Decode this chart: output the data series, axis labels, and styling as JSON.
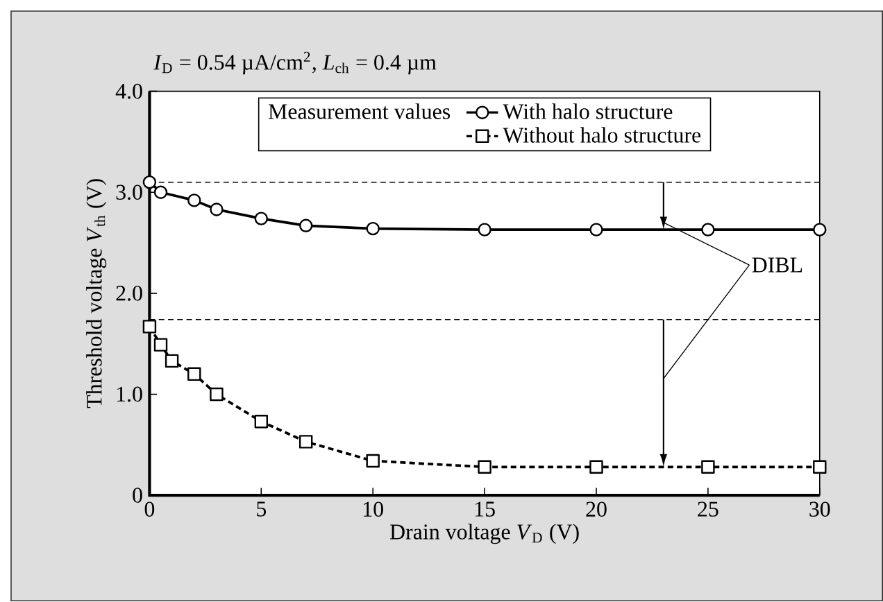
{
  "chart_data": {
    "type": "line",
    "title": "*I*$_{D}$ = 0.54 µA/cm$^{2}$, *L*$_{ch}$ = 0.4 µm",
    "xlabel": "Drain voltage *V*$_{D}$ (V)",
    "ylabel": "Threshold voltage *V*$_{th}$ (V)",
    "legend_title": "Measurement values",
    "xlim": [
      0,
      30
    ],
    "xticks": [
      0,
      5,
      10,
      15,
      20,
      25,
      30
    ],
    "ylim": [
      0,
      4
    ],
    "yticks": [
      0,
      {
        "value": 1,
        "label": "1.0"
      },
      {
        "value": 2,
        "label": "2.0"
      },
      {
        "value": 3,
        "label": "3.0"
      },
      {
        "value": 4,
        "label": "4.0"
      }
    ],
    "grid": false,
    "legend": "top",
    "series": [
      {
        "name": "With halo structure",
        "color": "#000000",
        "marker": "circle",
        "line_style": "solid",
        "x": [
          0,
          0.5,
          2,
          3,
          5,
          7,
          10,
          15,
          20,
          25,
          30
        ],
        "values": [
          3.1,
          3.0,
          2.92,
          2.83,
          2.74,
          2.67,
          2.64,
          2.63,
          2.63,
          2.63,
          2.63
        ]
      },
      {
        "name": "Without halo structure",
        "color": "#000000",
        "marker": "square",
        "line_style": "dashed",
        "x": [
          0,
          0.5,
          1,
          2,
          3,
          5,
          7,
          10,
          15,
          20,
          25,
          30
        ],
        "values": [
          1.67,
          1.49,
          1.33,
          1.2,
          1.0,
          0.73,
          0.53,
          0.34,
          0.28,
          0.28,
          0.28,
          0.28
        ]
      }
    ],
    "ref_lines": [
      {
        "axis": "y",
        "value": 3.1,
        "line_style": "dashed"
      },
      {
        "axis": "y",
        "value": 1.74,
        "line_style": "dashed"
      }
    ],
    "annotations": [
      "DIBL"
    ]
  }
}
